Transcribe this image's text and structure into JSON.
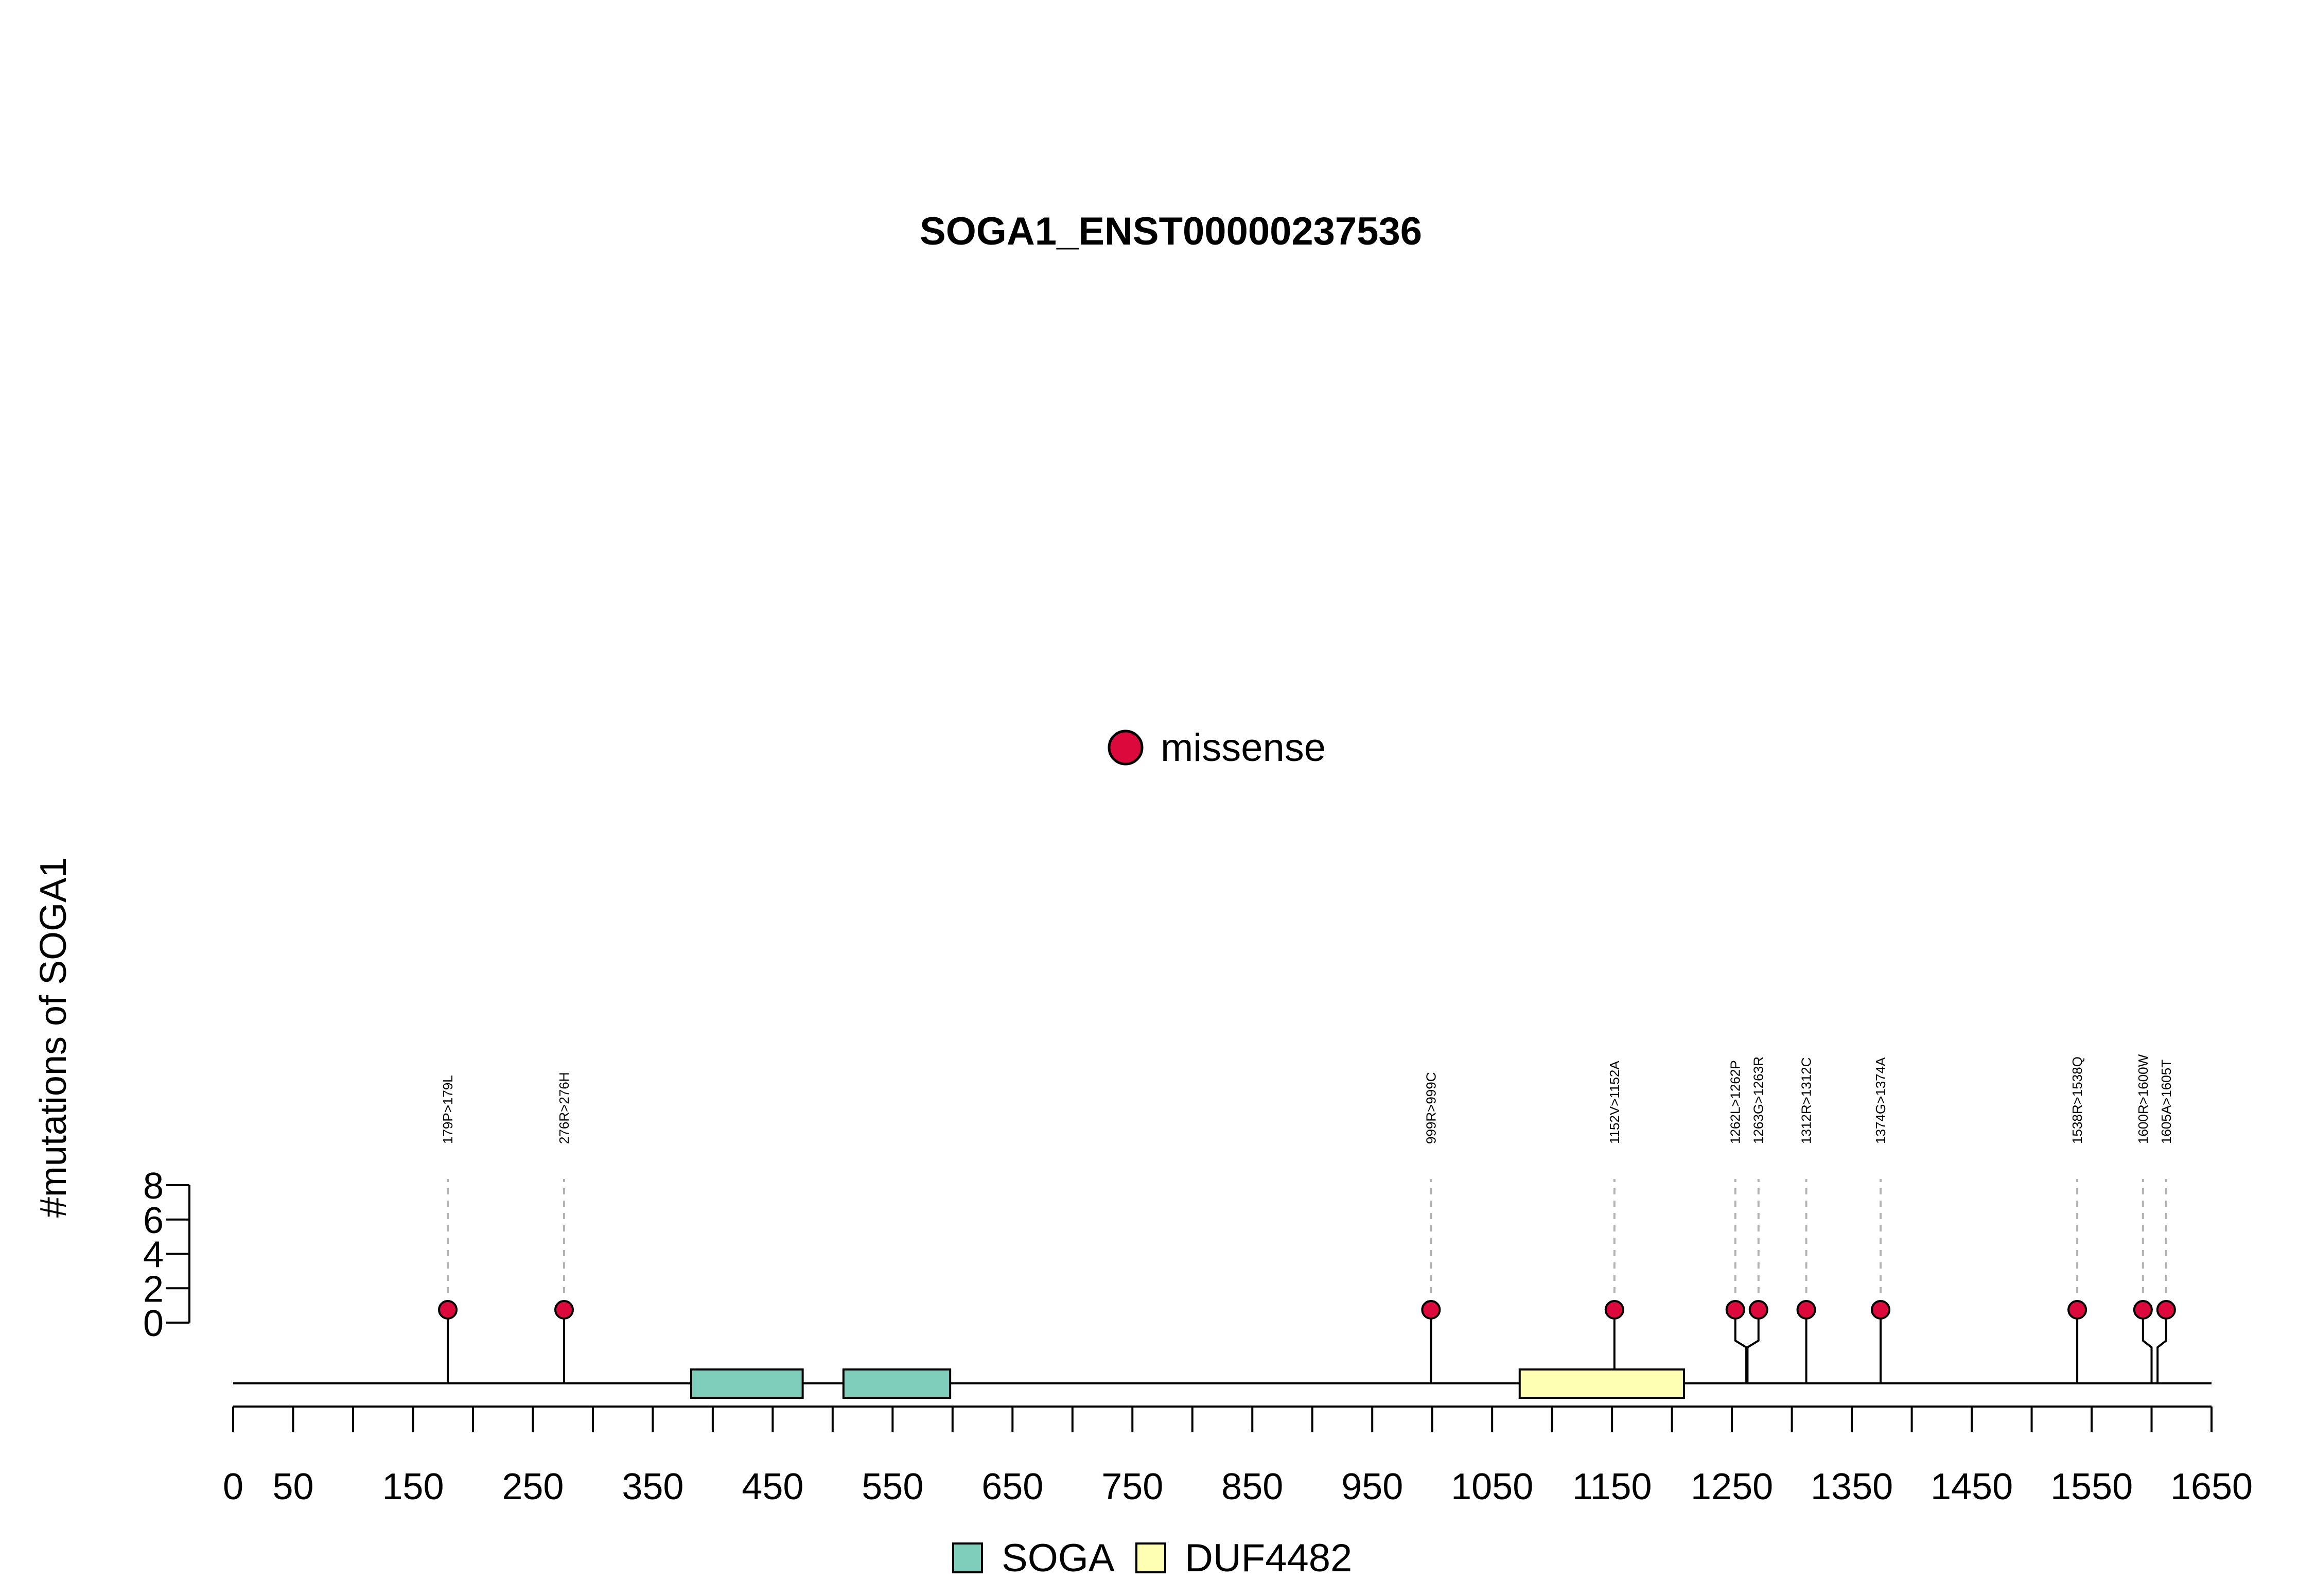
{
  "chart_data": {
    "type": "lollipop",
    "title": "SOGA1_ENST00000237536",
    "ylabel": "#mutations of SOGA1",
    "y_ticks": [
      0,
      2,
      4,
      6,
      8
    ],
    "ylim": [
      0,
      8
    ],
    "x_range": [
      0,
      1650
    ],
    "x_tick_labels": [
      0,
      50,
      150,
      250,
      350,
      450,
      550,
      650,
      750,
      850,
      950,
      1050,
      1150,
      1250,
      1350,
      1450,
      1550,
      1650
    ],
    "x_minor_ticks": [
      0,
      50,
      100,
      150,
      200,
      250,
      300,
      350,
      400,
      450,
      500,
      550,
      600,
      650,
      700,
      750,
      800,
      850,
      900,
      950,
      1000,
      1050,
      1100,
      1150,
      1200,
      1250,
      1300,
      1350,
      1400,
      1450,
      1500,
      1550,
      1600,
      1650
    ],
    "mutation_legend": [
      {
        "label": "missense",
        "color": "#DC0A3C"
      }
    ],
    "mutations": [
      {
        "position": 179,
        "label": "179P>179L",
        "type": "missense",
        "count": 1
      },
      {
        "position": 276,
        "label": "276R>276H",
        "type": "missense",
        "count": 1
      },
      {
        "position": 999,
        "label": "999R>999C",
        "type": "missense",
        "count": 1
      },
      {
        "position": 1152,
        "label": "1152V>1152A",
        "type": "missense",
        "count": 1
      },
      {
        "position": 1262,
        "label": "1262L>1262P",
        "type": "missense",
        "count": 1
      },
      {
        "position": 1263,
        "label": "1263G>1263R",
        "type": "missense",
        "count": 1
      },
      {
        "position": 1312,
        "label": "1312R>1312C",
        "type": "missense",
        "count": 1
      },
      {
        "position": 1374,
        "label": "1374G>1374A",
        "type": "missense",
        "count": 1
      },
      {
        "position": 1538,
        "label": "1538R>1538Q",
        "type": "missense",
        "count": 1
      },
      {
        "position": 1600,
        "label": "1600R>1600W",
        "type": "missense",
        "count": 1
      },
      {
        "position": 1605,
        "label": "1605A>1605T",
        "type": "missense",
        "count": 1
      }
    ],
    "domains": [
      {
        "name": "SOGA",
        "start": 382,
        "end": 475,
        "color": "#7FCDBB"
      },
      {
        "name": "SOGA",
        "start": 509,
        "end": 598,
        "color": "#7FCDBB"
      },
      {
        "name": "DUF4482",
        "start": 1073,
        "end": 1210,
        "color": "#FFFFB3"
      }
    ],
    "domain_legend": [
      {
        "label": "SOGA",
        "color": "#7FCDBB"
      },
      {
        "label": "DUF4482",
        "color": "#FFFFB3"
      }
    ]
  }
}
